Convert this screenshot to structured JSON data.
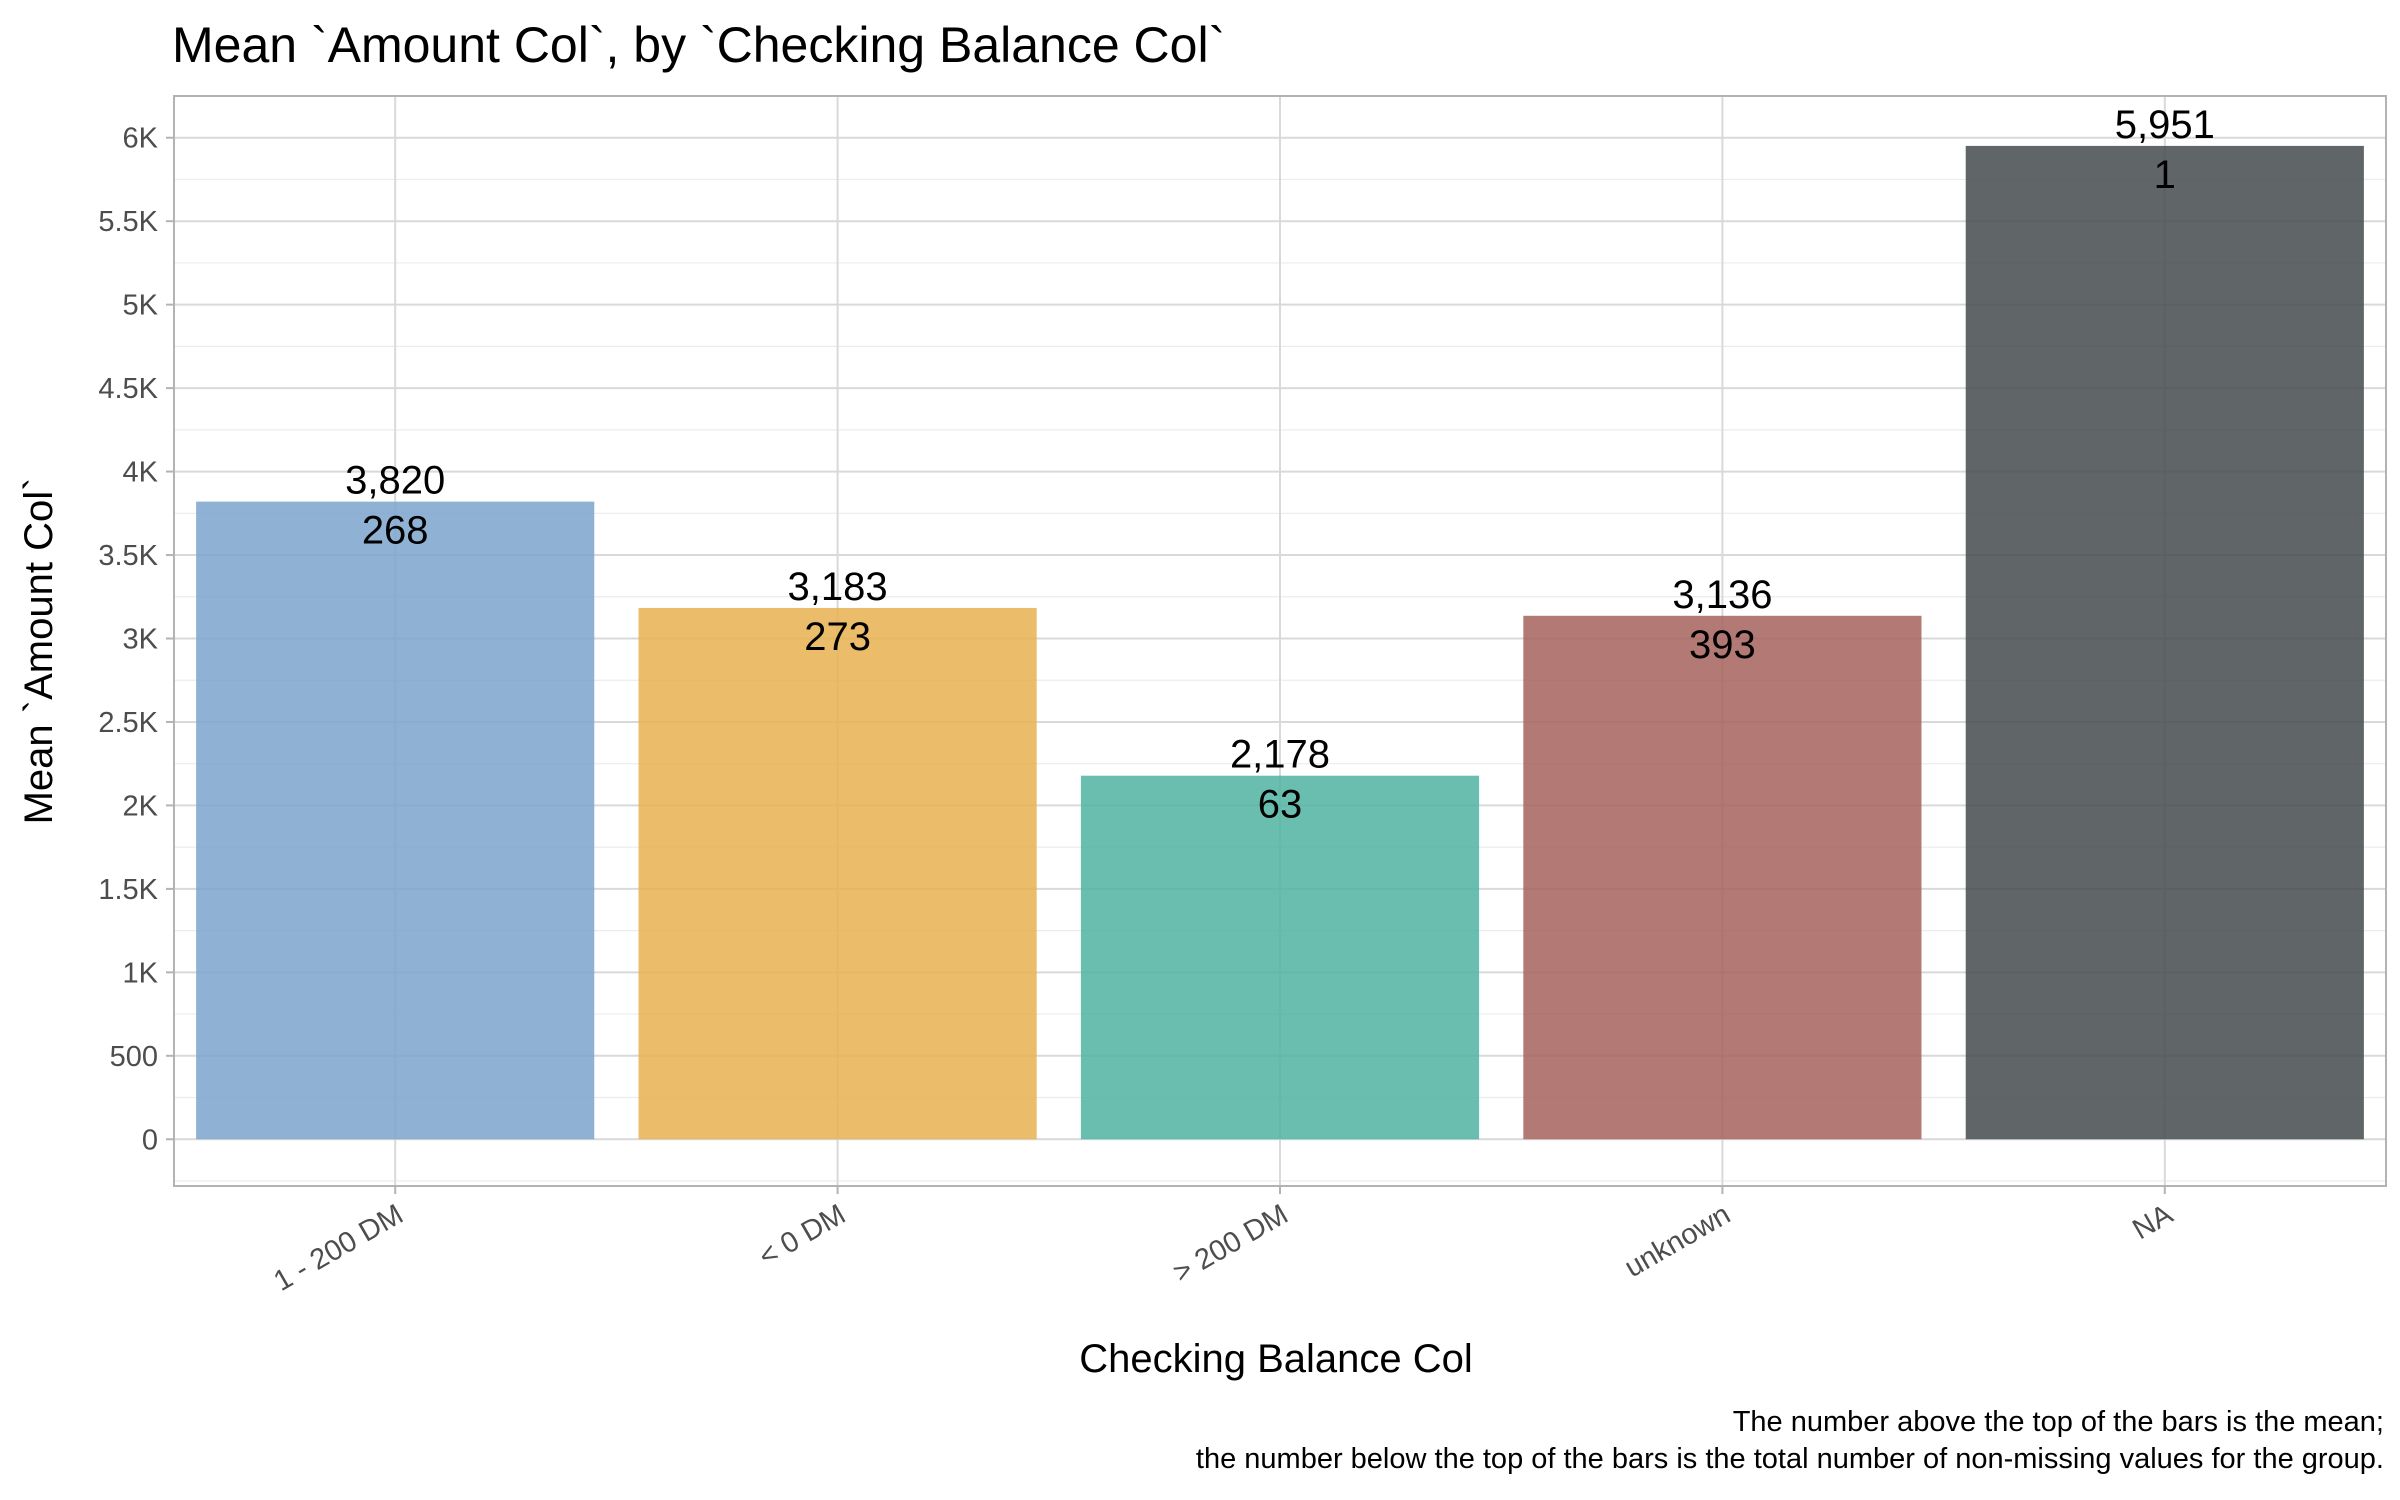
{
  "chart_data": {
    "type": "bar",
    "title": "Mean `Amount Col`, by `Checking Balance Col`",
    "xlabel": "Checking Balance Col",
    "ylabel": "Mean `Amount Col`",
    "categories": [
      "1 - 200 DM",
      "< 0 DM",
      "> 200 DM",
      "unknown",
      "NA"
    ],
    "values": [
      3820,
      3183,
      2178,
      3136,
      5951
    ],
    "value_labels": [
      "3,820",
      "3,183",
      "2,178",
      "3,136",
      "5,951"
    ],
    "counts": [
      "268",
      "273",
      "63",
      "393",
      "1"
    ],
    "colors": [
      "#7ba3cc",
      "#e8b04f",
      "#4fb3a1",
      "#a4615d",
      "#444a4c"
    ],
    "ylim": [
      -280,
      6250
    ],
    "yticks": [
      0,
      500,
      1000,
      1500,
      2000,
      2500,
      3000,
      3500,
      4000,
      4500,
      5000,
      5500,
      6000
    ],
    "ytick_labels": [
      "0",
      "500",
      "1K",
      "1.5K",
      "2K",
      "2.5K",
      "3K",
      "3.5K",
      "4K",
      "4.5K",
      "5K",
      "5.5K",
      "6K"
    ],
    "grid": true,
    "legend": "none",
    "caption_lines": [
      "The number above the top of the bars is the mean;",
      "the number below the top of the bars is the total number of non-missing values for the group."
    ]
  }
}
